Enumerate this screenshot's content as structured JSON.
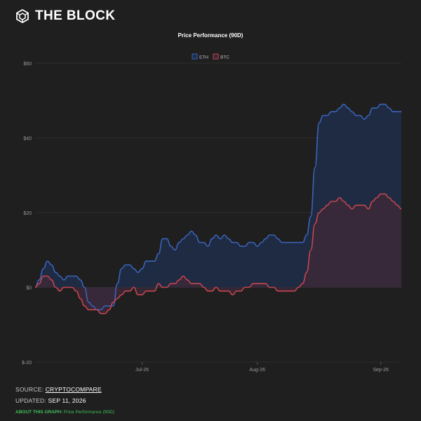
{
  "brand": {
    "name": "THE BLOCK",
    "logo_icon": "cube-logo-icon"
  },
  "footer": {
    "source_label": "SOURCE:",
    "source_value": "CRYPTOCOMPARE",
    "updated_label": "UPDATED:",
    "updated_value": "SEP 11, 2026",
    "about_label": "ABOUT THIS GRAPH:",
    "about_value": "Price Performance (90D)"
  },
  "chart_data": {
    "type": "area",
    "title": "Price Performance (90D)",
    "xlabel": "",
    "ylabel": "",
    "ylim": [
      -20,
      60
    ],
    "y_ticks": [
      {
        "value": 60,
        "label": "$60"
      },
      {
        "value": 40,
        "label": "$40"
      },
      {
        "value": 20,
        "label": "$20"
      },
      {
        "value": 0,
        "label": "$0"
      },
      {
        "value": -20,
        "label": "$-20"
      }
    ],
    "x_ticks": [
      {
        "index": 26,
        "label": "Jul-26"
      },
      {
        "index": 54,
        "label": "Aug-26"
      },
      {
        "index": 84,
        "label": "Sep-26"
      }
    ],
    "grid": true,
    "legend_position": "top-center",
    "series": [
      {
        "name": "ETH",
        "color": "#3a63b8",
        "fill": "#1e2e4a",
        "values": [
          0,
          2,
          5,
          7,
          6,
          4,
          3,
          2,
          3,
          3,
          3,
          2,
          0,
          -4,
          -5,
          -6,
          -6,
          -5,
          -5,
          -5,
          1,
          5,
          6,
          6,
          5,
          4,
          5,
          7,
          7,
          7,
          9,
          13,
          13,
          11,
          10,
          12,
          13,
          14,
          15,
          14,
          12,
          12,
          11,
          13,
          14,
          13,
          14,
          13,
          12,
          12,
          11,
          11,
          12,
          12,
          11,
          12,
          13,
          14,
          14,
          13,
          12,
          12,
          12,
          12,
          12,
          12,
          14,
          19,
          32,
          44,
          46,
          46,
          47,
          47,
          48,
          49,
          48,
          47,
          46,
          46,
          45,
          46,
          48,
          48,
          49,
          49,
          48,
          47,
          47,
          47
        ]
      },
      {
        "name": "BTC",
        "color": "#c5464e",
        "fill": "#3c2838",
        "values": [
          0,
          1,
          3,
          3,
          2,
          0,
          -1,
          0,
          0,
          0,
          -1,
          -3,
          -5,
          -6,
          -6,
          -6,
          -7,
          -7,
          -6,
          -4,
          -3,
          -2,
          -1,
          -1,
          0,
          -2,
          -2,
          -1,
          -1,
          -1,
          1,
          0,
          0,
          1,
          1,
          2,
          3,
          2,
          1,
          1,
          1,
          0,
          -1,
          -1,
          0,
          -1,
          -1,
          -1,
          -2,
          -1,
          -1,
          0,
          0,
          1,
          1,
          1,
          1,
          0,
          0,
          -1,
          -1,
          -1,
          -1,
          -1,
          0,
          1,
          4,
          10,
          17,
          20,
          21,
          22,
          23,
          23,
          24,
          23,
          22,
          21,
          22,
          22,
          22,
          21,
          23,
          24,
          25,
          25,
          24,
          23,
          22,
          21
        ]
      }
    ]
  }
}
